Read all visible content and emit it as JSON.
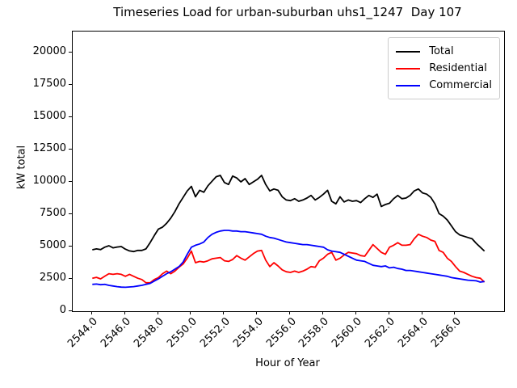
{
  "chart_data": {
    "type": "line",
    "title": "Timeseries Load for urban-suburban uhs1_1247  Day 107",
    "xlabel": "Hour of Year",
    "ylabel": "kW total",
    "xlim": [
      2542.81,
      2568.94
    ],
    "ylim": [
      0,
      21625
    ],
    "grid": false,
    "legend_position": "upper right",
    "x_ticks": [
      2544.0,
      2546.0,
      2548.0,
      2550.0,
      2552.0,
      2554.0,
      2556.0,
      2558.0,
      2560.0,
      2562.0,
      2564.0,
      2566.0
    ],
    "x_tick_labels": [
      "2544.0",
      "2546.0",
      "2548.0",
      "2550.0",
      "2552.0",
      "2554.0",
      "2556.0",
      "2558.0",
      "2560.0",
      "2562.0",
      "2564.0",
      "2566.0"
    ],
    "y_ticks": [
      0,
      2500,
      5000,
      7500,
      10000,
      12500,
      15000,
      17500,
      20000
    ],
    "y_tick_labels": [
      "0",
      "2500",
      "5000",
      "7500",
      "10000",
      "12500",
      "15000",
      "17500",
      "20000"
    ],
    "x": [
      2544.0,
      2544.25,
      2544.5,
      2544.75,
      2545.0,
      2545.25,
      2545.5,
      2545.75,
      2546.0,
      2546.25,
      2546.5,
      2546.75,
      2547.0,
      2547.25,
      2547.5,
      2547.75,
      2548.0,
      2548.25,
      2548.5,
      2548.75,
      2549.0,
      2549.25,
      2549.5,
      2549.75,
      2550.0,
      2550.25,
      2550.5,
      2550.75,
      2551.0,
      2551.25,
      2551.5,
      2551.75,
      2552.0,
      2552.25,
      2552.5,
      2552.75,
      2553.0,
      2553.25,
      2553.5,
      2553.75,
      2554.0,
      2554.25,
      2554.5,
      2554.75,
      2555.0,
      2555.25,
      2555.5,
      2555.75,
      2556.0,
      2556.25,
      2556.5,
      2556.75,
      2557.0,
      2557.25,
      2557.5,
      2557.75,
      2558.0,
      2558.25,
      2558.5,
      2558.75,
      2559.0,
      2559.25,
      2559.5,
      2559.75,
      2560.0,
      2560.25,
      2560.5,
      2560.75,
      2561.0,
      2561.25,
      2561.5,
      2561.75,
      2562.0,
      2562.25,
      2562.5,
      2562.75,
      2563.0,
      2563.25,
      2563.5,
      2563.75,
      2564.0,
      2564.25,
      2564.5,
      2564.75,
      2565.0,
      2565.25,
      2565.5,
      2565.75,
      2566.0,
      2566.25,
      2566.5,
      2566.75,
      2567.0,
      2567.25,
      2567.5,
      2567.75
    ],
    "series": [
      {
        "name": "Total",
        "color": "#000000",
        "values": [
          4750,
          4820,
          4760,
          4950,
          5060,
          4900,
          4960,
          5000,
          4800,
          4660,
          4610,
          4700,
          4700,
          4820,
          5300,
          5850,
          6350,
          6500,
          6800,
          7200,
          7700,
          8300,
          8800,
          9300,
          9650,
          8850,
          9350,
          9200,
          9700,
          10050,
          10400,
          10500,
          9950,
          9800,
          10450,
          10300,
          10000,
          10250,
          9800,
          10000,
          10200,
          10500,
          9800,
          9300,
          9450,
          9350,
          8850,
          8600,
          8550,
          8700,
          8500,
          8600,
          8750,
          8950,
          8600,
          8800,
          9050,
          9350,
          8500,
          8300,
          8850,
          8450,
          8600,
          8500,
          8550,
          8400,
          8700,
          8950,
          8800,
          9050,
          8100,
          8250,
          8350,
          8700,
          8950,
          8700,
          8750,
          8950,
          9300,
          9450,
          9150,
          9050,
          8800,
          8300,
          7550,
          7350,
          7050,
          6600,
          6150,
          5900,
          5800,
          5700,
          5600,
          5250,
          4950,
          4650
        ]
      },
      {
        "name": "Residential",
        "color": "#ff0000",
        "values": [
          2550,
          2620,
          2500,
          2700,
          2900,
          2850,
          2900,
          2850,
          2700,
          2850,
          2700,
          2550,
          2450,
          2200,
          2200,
          2450,
          2600,
          2900,
          3100,
          2900,
          3100,
          3400,
          3650,
          4100,
          4650,
          3750,
          3850,
          3800,
          3900,
          4050,
          4100,
          4150,
          3900,
          3850,
          4000,
          4300,
          4100,
          3950,
          4200,
          4450,
          4650,
          4700,
          3950,
          3450,
          3750,
          3500,
          3200,
          3050,
          3000,
          3100,
          3000,
          3100,
          3250,
          3450,
          3400,
          3900,
          4100,
          4400,
          4550,
          3950,
          4100,
          4350,
          4550,
          4500,
          4450,
          4300,
          4250,
          4700,
          5150,
          4850,
          4550,
          4400,
          4950,
          5100,
          5300,
          5100,
          5100,
          5150,
          5600,
          5950,
          5800,
          5700,
          5500,
          5400,
          4700,
          4550,
          4100,
          3850,
          3450,
          3100,
          3000,
          2850,
          2700,
          2600,
          2550,
          2250
        ]
      },
      {
        "name": "Commercial",
        "color": "#0000ff",
        "values": [
          2075,
          2100,
          2050,
          2075,
          2000,
          1950,
          1900,
          1860,
          1850,
          1875,
          1900,
          1950,
          2000,
          2075,
          2150,
          2330,
          2500,
          2700,
          2900,
          3050,
          3250,
          3450,
          3800,
          4400,
          4950,
          5100,
          5200,
          5350,
          5700,
          5950,
          6100,
          6200,
          6250,
          6250,
          6200,
          6200,
          6150,
          6150,
          6100,
          6050,
          6000,
          5950,
          5800,
          5700,
          5650,
          5550,
          5450,
          5350,
          5300,
          5250,
          5200,
          5150,
          5150,
          5100,
          5050,
          5000,
          4950,
          4750,
          4650,
          4600,
          4550,
          4400,
          4250,
          4100,
          3950,
          3900,
          3850,
          3700,
          3550,
          3500,
          3450,
          3500,
          3350,
          3400,
          3300,
          3250,
          3150,
          3150,
          3100,
          3050,
          3000,
          2950,
          2900,
          2850,
          2800,
          2750,
          2700,
          2600,
          2550,
          2500,
          2450,
          2400,
          2375,
          2350,
          2250,
          2300
        ]
      }
    ]
  }
}
